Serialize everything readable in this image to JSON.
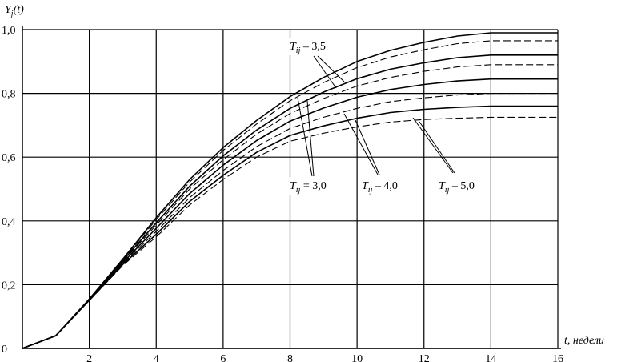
{
  "chart_data": {
    "type": "line",
    "y_label": {
      "symbol": "Y",
      "subscript": "j",
      "rest": "(t)"
    },
    "x_label": "t, недели",
    "x": [
      0,
      1,
      2,
      3,
      4,
      5,
      6,
      7,
      8,
      9,
      10,
      11,
      12,
      13,
      14,
      15,
      16
    ],
    "series": [
      {
        "color": "#000000",
        "dash": "solid",
        "values": [
          0,
          0.04,
          0.155,
          0.28,
          0.41,
          0.53,
          0.63,
          0.715,
          0.79,
          0.85,
          0.9,
          0.935,
          0.96,
          0.98,
          0.99,
          0.99,
          0.99
        ]
      },
      {
        "color": "#000000",
        "dash": "dashed",
        "values": [
          0,
          0.04,
          0.155,
          0.278,
          0.404,
          0.522,
          0.621,
          0.704,
          0.777,
          0.834,
          0.881,
          0.914,
          0.937,
          0.956,
          0.965,
          0.965,
          0.965
        ]
      },
      {
        "color": "#000000",
        "dash": "solid",
        "values": [
          0,
          0.04,
          0.154,
          0.275,
          0.394,
          0.509,
          0.604,
          0.685,
          0.753,
          0.804,
          0.846,
          0.876,
          0.896,
          0.912,
          0.92,
          0.92,
          0.92
        ]
      },
      {
        "color": "#000000",
        "dash": "dashed",
        "values": [
          0,
          0.04,
          0.153,
          0.272,
          0.387,
          0.5,
          0.592,
          0.672,
          0.737,
          0.784,
          0.823,
          0.85,
          0.869,
          0.883,
          0.89,
          0.89,
          0.89
        ]
      },
      {
        "color": "#000000",
        "dash": "solid",
        "values": [
          0,
          0.04,
          0.152,
          0.269,
          0.377,
          0.486,
          0.575,
          0.652,
          0.713,
          0.754,
          0.788,
          0.812,
          0.828,
          0.839,
          0.845,
          0.845,
          0.845
        ]
      },
      {
        "color": "#000000",
        "dash": "dashed",
        "values": [
          0,
          0.04,
          0.151,
          0.266,
          0.367,
          0.473,
          0.558,
          0.633,
          0.69,
          0.725,
          0.753,
          0.774,
          0.786,
          0.795,
          0.8,
          0.8,
          0.8
        ]
      },
      {
        "color": "#000000",
        "dash": "solid",
        "values": [
          0,
          0.04,
          0.151,
          0.263,
          0.358,
          0.461,
          0.543,
          0.615,
          0.668,
          0.698,
          0.722,
          0.74,
          0.75,
          0.756,
          0.76,
          0.76,
          0.76
        ]
      },
      {
        "color": "#000000",
        "dash": "dashed",
        "values": [
          0,
          0.04,
          0.15,
          0.26,
          0.35,
          0.45,
          0.53,
          0.6,
          0.65,
          0.675,
          0.695,
          0.71,
          0.718,
          0.722,
          0.725,
          0.725,
          0.725
        ]
      }
    ],
    "xlim": [
      0,
      16
    ],
    "xticks": [
      2,
      4,
      6,
      8,
      10,
      12,
      14,
      16
    ],
    "ylim": [
      0,
      1
    ],
    "yticks": [
      0,
      {
        "value": 0.2,
        "label": "0,2"
      },
      {
        "value": 0.4,
        "label": "0,4"
      },
      {
        "value": 0.6,
        "label": "0,6"
      },
      {
        "value": 0.8,
        "label": "0,8"
      },
      {
        "value": 1,
        "label": "1,0"
      }
    ],
    "grid": true,
    "annotations": [
      {
        "symbol": "T",
        "subscript": "ij",
        "rest": " – 3,5"
      },
      {
        "symbol": "T",
        "subscript": "ij",
        "rest": " = 3,0"
      },
      {
        "symbol": "T",
        "subscript": "ij",
        "rest": " – 4,0"
      },
      {
        "symbol": "T",
        "subscript": "ij",
        "rest": " – 5,0"
      }
    ]
  }
}
